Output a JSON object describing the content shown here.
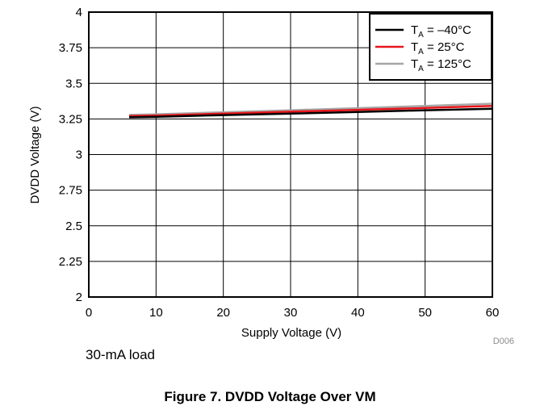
{
  "chart_data": {
    "type": "line",
    "xlabel": "Supply Voltage (V)",
    "ylabel": "DVDD Voltage (V)",
    "xlim": [
      0,
      60
    ],
    "ylim": [
      2,
      4
    ],
    "xticks": [
      0,
      10,
      20,
      30,
      40,
      50,
      60
    ],
    "yticks": [
      2,
      2.25,
      2.5,
      2.75,
      3,
      3.25,
      3.5,
      3.75,
      4
    ],
    "x_tick_labels": [
      "0",
      "10",
      "20",
      "30",
      "40",
      "50",
      "60"
    ],
    "y_tick_labels": [
      "2",
      "2.25",
      "2.5",
      "2.75",
      "3",
      "3.25",
      "3.5",
      "3.75",
      "4"
    ],
    "grid": true,
    "legend_position": "top-right",
    "series": [
      {
        "name": "T_A = –40°C",
        "name_main": "T",
        "name_sub": "A",
        "name_rest": " = –40°C",
        "color": "#000000",
        "x": [
          6,
          10,
          20,
          30,
          40,
          50,
          60
        ],
        "y": [
          3.262,
          3.265,
          3.277,
          3.287,
          3.299,
          3.311,
          3.322
        ]
      },
      {
        "name": "T_A = 25°C",
        "name_main": "T",
        "name_sub": "A",
        "name_rest": " = 25°C",
        "color": "#e8151b",
        "x": [
          6,
          10,
          20,
          30,
          40,
          50,
          60
        ],
        "y": [
          3.27,
          3.274,
          3.288,
          3.301,
          3.314,
          3.327,
          3.341
        ]
      },
      {
        "name": "T_A = 125°C",
        "name_main": "T",
        "name_sub": "A",
        "name_rest": " = 125°C",
        "color": "#a6a6a6",
        "x": [
          6,
          10,
          20,
          30,
          40,
          50,
          60
        ],
        "y": [
          3.278,
          3.283,
          3.297,
          3.311,
          3.326,
          3.341,
          3.357
        ]
      }
    ]
  },
  "figure_id": "D006",
  "note": "30-mA load",
  "caption": "Figure 7. DVDD Voltage Over VM"
}
